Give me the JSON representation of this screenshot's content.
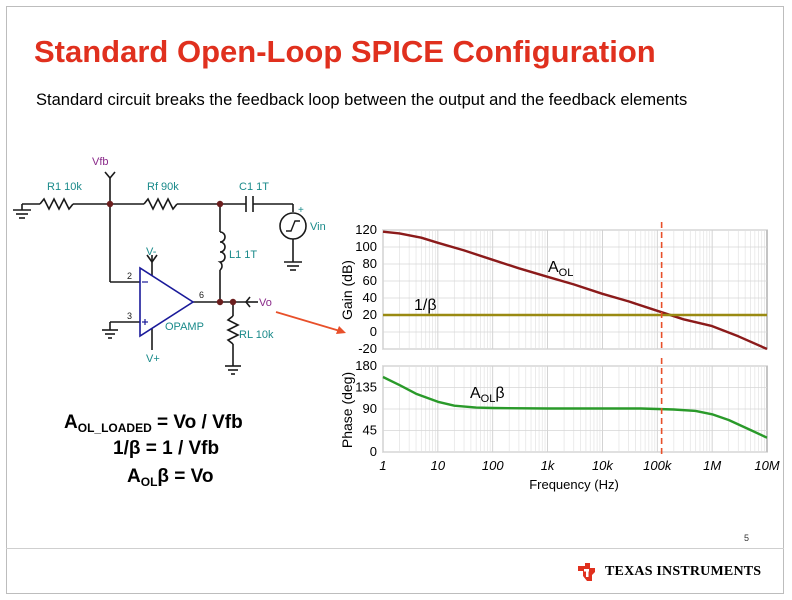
{
  "slide": {
    "title": "Standard Open-Loop SPICE Configuration",
    "subtitle": "Standard circuit breaks the feedback loop between the output and the feedback elements",
    "page_number": "5"
  },
  "circuit": {
    "vfb": "Vfb",
    "r1": "R1 10k",
    "rf": "Rf 90k",
    "c1": "C1 1T",
    "vin": "Vin",
    "l1": "L1 1T",
    "vminus": "V-",
    "vplus": "V+",
    "pin2": "2",
    "pin3": "3",
    "pin6": "6",
    "opamp": "OPAMP",
    "vo": "Vo",
    "rl": "RL 10k"
  },
  "equations": {
    "eq1_main": "A",
    "eq1_sub": "OL_LOADED",
    "eq1_rest": " = Vo / Vfb",
    "eq2": "1/β  = 1 / Vfb",
    "eq3_main": "A",
    "eq3_sub": "OL",
    "eq3_rest": "β = Vo"
  },
  "chart_data": [
    {
      "type": "line",
      "ylabel": "Gain (dB)",
      "ylim": [
        -20,
        120
      ],
      "yticks": [
        "120",
        "100",
        "80",
        "60",
        "40",
        "20",
        "0",
        "-20"
      ],
      "x_scale": "log",
      "xlim": [
        1,
        10000000
      ],
      "grid": true,
      "series": [
        {
          "name": "AOL",
          "color": "#8b1a1a",
          "x": [
            1,
            2,
            5,
            10,
            30,
            100,
            300,
            1000,
            3000,
            10000,
            30000,
            100000,
            300000,
            1000000,
            3000000,
            10000000
          ],
          "y": [
            118,
            116,
            111,
            105,
            96,
            85,
            75,
            65,
            56,
            45,
            36,
            25,
            15,
            7,
            -5,
            -20
          ]
        },
        {
          "name": "1/β",
          "color": "#9a8a12",
          "x": [
            1,
            10000000
          ],
          "y": [
            20,
            20
          ]
        }
      ],
      "annotations": [
        {
          "text": "AOL"
        },
        {
          "text": "1/β"
        }
      ],
      "marker_x": 120000
    },
    {
      "type": "line",
      "ylabel": "Phase (deg)",
      "ylim": [
        0,
        180
      ],
      "yticks": [
        "180",
        "135",
        "90",
        "45",
        "0"
      ],
      "x_scale": "log",
      "xlim": [
        1,
        10000000
      ],
      "xticks": [
        "1",
        "10",
        "100",
        "1k",
        "10k",
        "100k",
        "1M",
        "10M"
      ],
      "xlabel": "Frequency (Hz)",
      "grid": true,
      "series": [
        {
          "name": "AOLβ",
          "color": "#2a9a2a",
          "x": [
            1,
            2,
            4,
            10,
            20,
            50,
            100,
            1000,
            10000,
            50000,
            100000,
            200000,
            500000,
            1000000,
            2000000,
            5000000,
            10000000
          ],
          "y": [
            157,
            140,
            122,
            105,
            97,
            93,
            92,
            91,
            91,
            91,
            90,
            89,
            86,
            79,
            67,
            46,
            30
          ]
        }
      ],
      "annotations": [
        {
          "text": "AOLβ"
        }
      ],
      "marker_x": 120000
    }
  ],
  "chart_labels": {
    "gain_ylabel": "Gain (dB)",
    "phase_ylabel": "Phase (deg)",
    "xlabel": "Frequency (Hz)",
    "aol_main": "A",
    "aol_sub": "OL",
    "beta_inv": "1/β",
    "aolb_main": "A",
    "aolb_sub": "OL",
    "aolb_tail": "β"
  },
  "footer": {
    "company": "Texas Instruments"
  },
  "colors": {
    "title": "#e0301e",
    "circuit_label": "#1a8a8a",
    "node": "#6b1e1e",
    "opamp": "#1a1a9a",
    "aol": "#8b1a1a",
    "beta": "#9a8a12",
    "phase": "#2a9a2a",
    "marker": "#e8502a"
  }
}
